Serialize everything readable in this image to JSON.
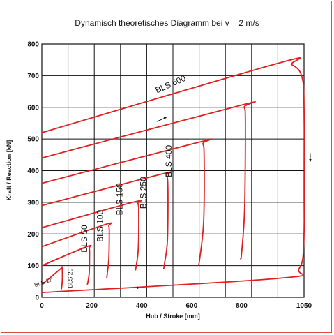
{
  "chart_data": {
    "type": "line",
    "title": "Dynamisch theoretisches Diagramm bei v = 2 m/s",
    "xlabel": "Hub / Stroke [mm]",
    "ylabel": "Kraft / Reaction [kN]",
    "xlim": [
      0,
      1050
    ],
    "ylim": [
      0,
      800
    ],
    "x_ticks": [
      "0",
      "200",
      "400",
      "600",
      "800",
      "1050"
    ],
    "y_ticks": [
      "0",
      "100",
      "200",
      "300",
      "400",
      "500",
      "600",
      "700",
      "800"
    ],
    "grid": true,
    "line_color": "#e02020",
    "series": [
      {
        "name": "BLS 12",
        "x": [
          0,
          75,
          80,
          82,
          82,
          80,
          78
        ],
        "y": [
          40,
          90,
          95,
          85,
          55,
          35,
          25
        ],
        "label_at": [
          8,
          42
        ]
      },
      {
        "name": "BLS 25",
        "x": [
          0,
          180,
          190,
          191,
          190,
          185,
          182
        ],
        "y": [
          100,
          160,
          155,
          130,
          80,
          50,
          40
        ],
        "label_at": [
          122,
          60
        ]
      },
      {
        "name": "BLS 50",
        "x": [
          0,
          255,
          268,
          270,
          268,
          262,
          260
        ],
        "y": [
          160,
          230,
          225,
          200,
          120,
          75,
          60
        ],
        "label_at": [
          182,
          185
        ]
      },
      {
        "name": "BLS 100",
        "x": [
          0,
          365,
          385,
          388,
          386,
          378,
          375
        ],
        "y": [
          220,
          300,
          295,
          260,
          150,
          100,
          85
        ],
        "label_at": [
          245,
          225
        ]
      },
      {
        "name": "BLS 150",
        "x": [
          0,
          485,
          500,
          505,
          503,
          492,
          488
        ],
        "y": [
          290,
          390,
          385,
          340,
          180,
          110,
          90
        ],
        "label_at": [
          322,
          310
        ]
      },
      {
        "name": "BLS 250",
        "x": [
          0,
          630,
          645,
          650,
          648,
          632,
          626
        ],
        "y": [
          360,
          490,
          485,
          440,
          240,
          120,
          100
        ],
        "label_at": [
          418,
          330
        ]
      },
      {
        "name": "BLS 400",
        "x": [
          0,
          790,
          810,
          815,
          812,
          800,
          795
        ],
        "y": [
          440,
          605,
          600,
          550,
          280,
          140,
          120
        ],
        "label_at": [
          520,
          430
        ]
      },
      {
        "name": "BLS 600",
        "x": [
          0,
          950,
          1000,
          1040,
          1050,
          1050,
          1030,
          950,
          0
        ],
        "y": [
          520,
          740,
          735,
          700,
          600,
          200,
          90,
          60,
          15
        ],
        "label_at": [
          520,
          665
        ]
      }
    ],
    "annotations": [
      {
        "type": "arrow",
        "direction": "up-right",
        "at": [
          460,
          555
        ]
      },
      {
        "type": "arrow",
        "direction": "down",
        "at": [
          1075,
          455
        ]
      },
      {
        "type": "arrow",
        "direction": "left",
        "at": [
          415,
          30
        ]
      }
    ]
  }
}
